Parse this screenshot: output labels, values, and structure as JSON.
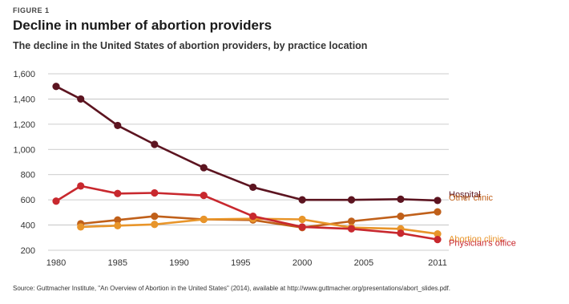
{
  "figure_label": "FIGURE 1",
  "source_text": "Source: Guttmacher Institute, \"An Overview of Abortion in the United States\" (2014), available at http://www.guttmacher.org/presentations/abort_slides.pdf.",
  "chart_data": {
    "type": "line",
    "title": "Decline in number of abortion providers",
    "subtitle": "The decline in the United States of abortion providers, by practice location",
    "xlabel": "",
    "ylabel": "",
    "xlim": [
      1980,
      2011
    ],
    "ylim": [
      200,
      1600
    ],
    "x_ticks": [
      "1980",
      "1985",
      "1990",
      "1995",
      "2000",
      "2005",
      "2011"
    ],
    "y_ticks": [
      "200",
      "400",
      "600",
      "800",
      "1,000",
      "1,200",
      "1,400",
      "1,600"
    ],
    "grid": true,
    "legend": "right, labels beside line ends",
    "series": [
      {
        "name": "Hospital",
        "color": "#5c1420",
        "x": [
          1980,
          1982,
          1985,
          1988,
          1992,
          1996,
          2000,
          2004,
          2008,
          2011
        ],
        "y": [
          1500,
          1400,
          1190,
          1040,
          855,
          700,
          600,
          600,
          605,
          595
        ]
      },
      {
        "name": "Other clinic",
        "color": "#c0601a",
        "x": [
          1982,
          1985,
          1988,
          1992,
          1996,
          2000,
          2004,
          2008,
          2011
        ],
        "y": [
          410,
          440,
          470,
          445,
          440,
          380,
          430,
          470,
          505
        ]
      },
      {
        "name": "Abortion clinic",
        "color": "#e8952a",
        "x": [
          1982,
          1985,
          1988,
          1992,
          1996,
          2000,
          2004,
          2008,
          2011
        ],
        "y": [
          385,
          395,
          405,
          445,
          450,
          445,
          380,
          370,
          330
        ]
      },
      {
        "name": "Physician's office",
        "color": "#c8282e",
        "x": [
          1980,
          1982,
          1985,
          1988,
          1992,
          1996,
          2000,
          2004,
          2008,
          2011
        ],
        "y": [
          590,
          710,
          650,
          655,
          635,
          470,
          385,
          370,
          335,
          285
        ]
      }
    ]
  }
}
